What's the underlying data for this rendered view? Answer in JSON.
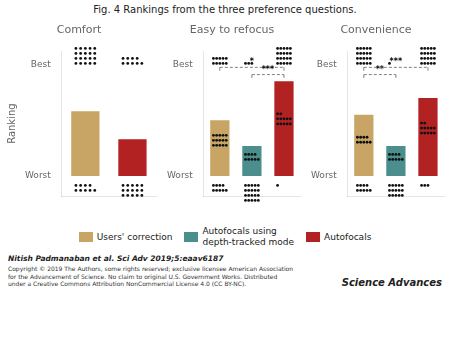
{
  "title": "Fig. 4 Rankings from the three preference questions.",
  "annotations": [
    "Nitish Padmanaban et al. Sci Adv 2019;5:eaav6187",
    "Copyright © 2019 The Authors, some rights reserved; exclusive licensee American Association\nfor the Advancement of Science. No claim to original U.S. Government Works. Distributed\nunder a Creative Commons Attribution NonCommercial License 4.0 (CC BY-NC).",
    "Science Advances"
  ],
  "legend": "bottom",
  "series": [
    {
      "name": "Users' correction",
      "color": "#C8A564"
    },
    {
      "name": "Autofocals using\ndepth-tracked mode",
      "color": "#4A8E8E"
    },
    {
      "name": "Autofocals",
      "color": "#B22222"
    }
  ],
  "chart_data": [
    {
      "type": "bar",
      "title": "Comfort",
      "ylabel": "Ranking",
      "categories": [
        null,
        null
      ],
      "values": [
        0.58,
        0.33
      ],
      "colors": [
        "#C8A564",
        "#B22222"
      ],
      "ylim": [
        -0.18,
        1.12
      ],
      "yticks": [
        {
          "value": 0,
          "label": "Worst"
        },
        {
          "value": 1,
          "label": "Best"
        }
      ],
      "grid": false,
      "tick_labels": "y",
      "brackets": [],
      "top_dots": [
        20,
        9
      ],
      "mid_dots": [
        0,
        0
      ],
      "bot_dots": [
        9,
        15
      ]
    },
    {
      "type": "bar",
      "title": "Easy to refocus",
      "categories": [
        null,
        null,
        null
      ],
      "values": [
        0.5,
        0.27,
        0.85
      ],
      "colors": [
        "#C8A564",
        "#4A8E8E",
        "#B22222"
      ],
      "ylim": [
        -0.18,
        1.12
      ],
      "yticks": [
        {
          "value": 0,
          "label": "Worst"
        },
        {
          "value": 1,
          "label": "Best"
        }
      ],
      "grid": false,
      "tick_labels": "y",
      "brackets": [
        {
          "from": 0,
          "to": 2,
          "y": 0.975,
          "label": "*"
        },
        {
          "from": 1,
          "to": 2,
          "y": 0.91,
          "label": "***"
        }
      ],
      "top_dots": [
        10,
        3,
        20
      ],
      "mid_dots": [
        15,
        9,
        12
      ],
      "bot_dots": [
        9,
        20,
        1
      ]
    },
    {
      "type": "bar",
      "title": "Convenience",
      "categories": [
        null,
        null,
        null
      ],
      "values": [
        0.55,
        0.27,
        0.7
      ],
      "colors": [
        "#C8A564",
        "#4A8E8E",
        "#B22222"
      ],
      "ylim": [
        -0.18,
        1.12
      ],
      "yticks": [
        {
          "value": 0,
          "label": "Worst"
        },
        {
          "value": 1,
          "label": "Best"
        }
      ],
      "grid": false,
      "tick_labels": "y",
      "brackets": [
        {
          "from": 0,
          "to": 1,
          "y": 0.91,
          "label": "**"
        },
        {
          "from": 0,
          "to": 2,
          "y": 0.975,
          "label": "***"
        }
      ],
      "top_dots": [
        20,
        1,
        20
      ],
      "mid_dots": [
        9,
        9,
        12
      ],
      "bot_dots": [
        9,
        15,
        3
      ]
    }
  ]
}
